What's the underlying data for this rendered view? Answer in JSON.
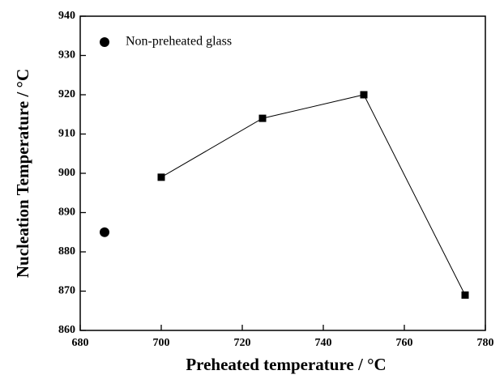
{
  "chart_data": {
    "type": "line",
    "xlabel": "Preheated temperature / °C",
    "ylabel": "Nucleation Temperature / °C",
    "xlim": [
      680,
      780
    ],
    "xticks": [
      680,
      700,
      720,
      740,
      760,
      780
    ],
    "ylim": [
      860,
      940
    ],
    "yticks": [
      860,
      870,
      880,
      890,
      900,
      910,
      920,
      930,
      940
    ],
    "legend": "upper left",
    "series": [
      {
        "x": [
          700,
          725,
          750,
          775
        ],
        "values": [
          899,
          914,
          920,
          869
        ],
        "color": "#000000",
        "marker": "square",
        "line": true
      },
      {
        "name": "Non-preheated glass",
        "x": [
          686
        ],
        "values": [
          885
        ],
        "color": "#000000",
        "marker": "circle",
        "line": false
      }
    ]
  }
}
